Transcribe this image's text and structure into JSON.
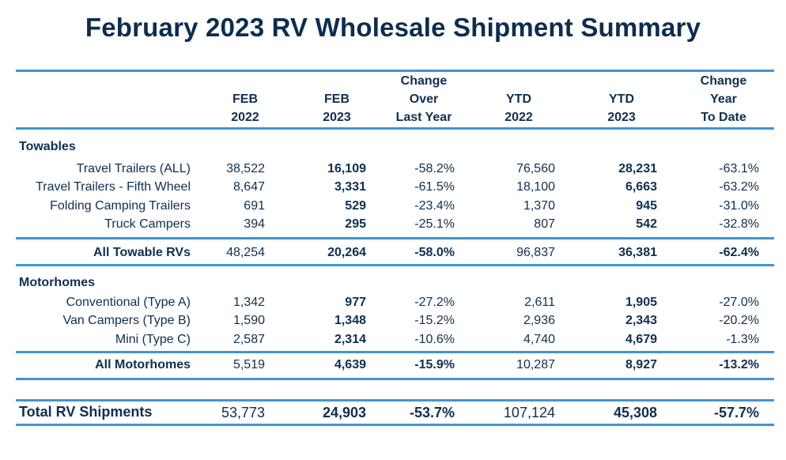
{
  "title": "February 2023 RV Wholesale Shipment Summary",
  "headers": [
    [
      "FEB",
      "2022"
    ],
    [
      "FEB",
      "2023"
    ],
    [
      "Change",
      "Over",
      "Last Year"
    ],
    [
      "YTD",
      "2022"
    ],
    [
      "YTD",
      "2023"
    ],
    [
      "Change",
      "Year",
      "To Date"
    ]
  ],
  "towables": {
    "heading": "Towables",
    "rows": [
      {
        "label": "Travel Trailers (ALL)",
        "values": [
          "38,522",
          "16,109",
          "-58.2%",
          "76,560",
          "28,231",
          "-63.1%"
        ]
      },
      {
        "label": "Travel Trailers - Fifth Wheel",
        "values": [
          "8,647",
          "3,331",
          "-61.5%",
          "18,100",
          "6,663",
          "-63.2%"
        ]
      },
      {
        "label": "Folding Camping Trailers",
        "values": [
          "691",
          "529",
          "-23.4%",
          "1,370",
          "945",
          "-31.0%"
        ]
      },
      {
        "label": "Truck Campers",
        "values": [
          "394",
          "295",
          "-25.1%",
          "807",
          "542",
          "-32.8%"
        ]
      }
    ],
    "total": {
      "label": "All Towable RVs",
      "values": [
        "48,254",
        "20,264",
        "-58.0%",
        "96,837",
        "36,381",
        "-62.4%"
      ]
    }
  },
  "motorhomes": {
    "heading": "Motorhomes",
    "rows": [
      {
        "label": "Conventional (Type A)",
        "values": [
          "1,342",
          "977",
          "-27.2%",
          "2,611",
          "1,905",
          "-27.0%"
        ]
      },
      {
        "label": "Van Campers (Type B)",
        "values": [
          "1,590",
          "1,348",
          "-15.2%",
          "2,936",
          "2,343",
          "-20.2%"
        ]
      },
      {
        "label": "Mini (Type C)",
        "values": [
          "2,587",
          "2,314",
          "-10.6%",
          "4,740",
          "4,679",
          "-1.3%"
        ]
      }
    ],
    "total": {
      "label": "All Motorhomes",
      "values": [
        "5,519",
        "4,639",
        "-15.9%",
        "10,287",
        "8,927",
        "-13.2%"
      ]
    }
  },
  "grand_total": {
    "label": "Total RV Shipments",
    "values": [
      "53,773",
      "24,903",
      "-53.7%",
      "107,124",
      "45,308",
      "-57.7%"
    ]
  },
  "colors": {
    "rule": "#3f96cf",
    "text": "#0f2f4f"
  }
}
